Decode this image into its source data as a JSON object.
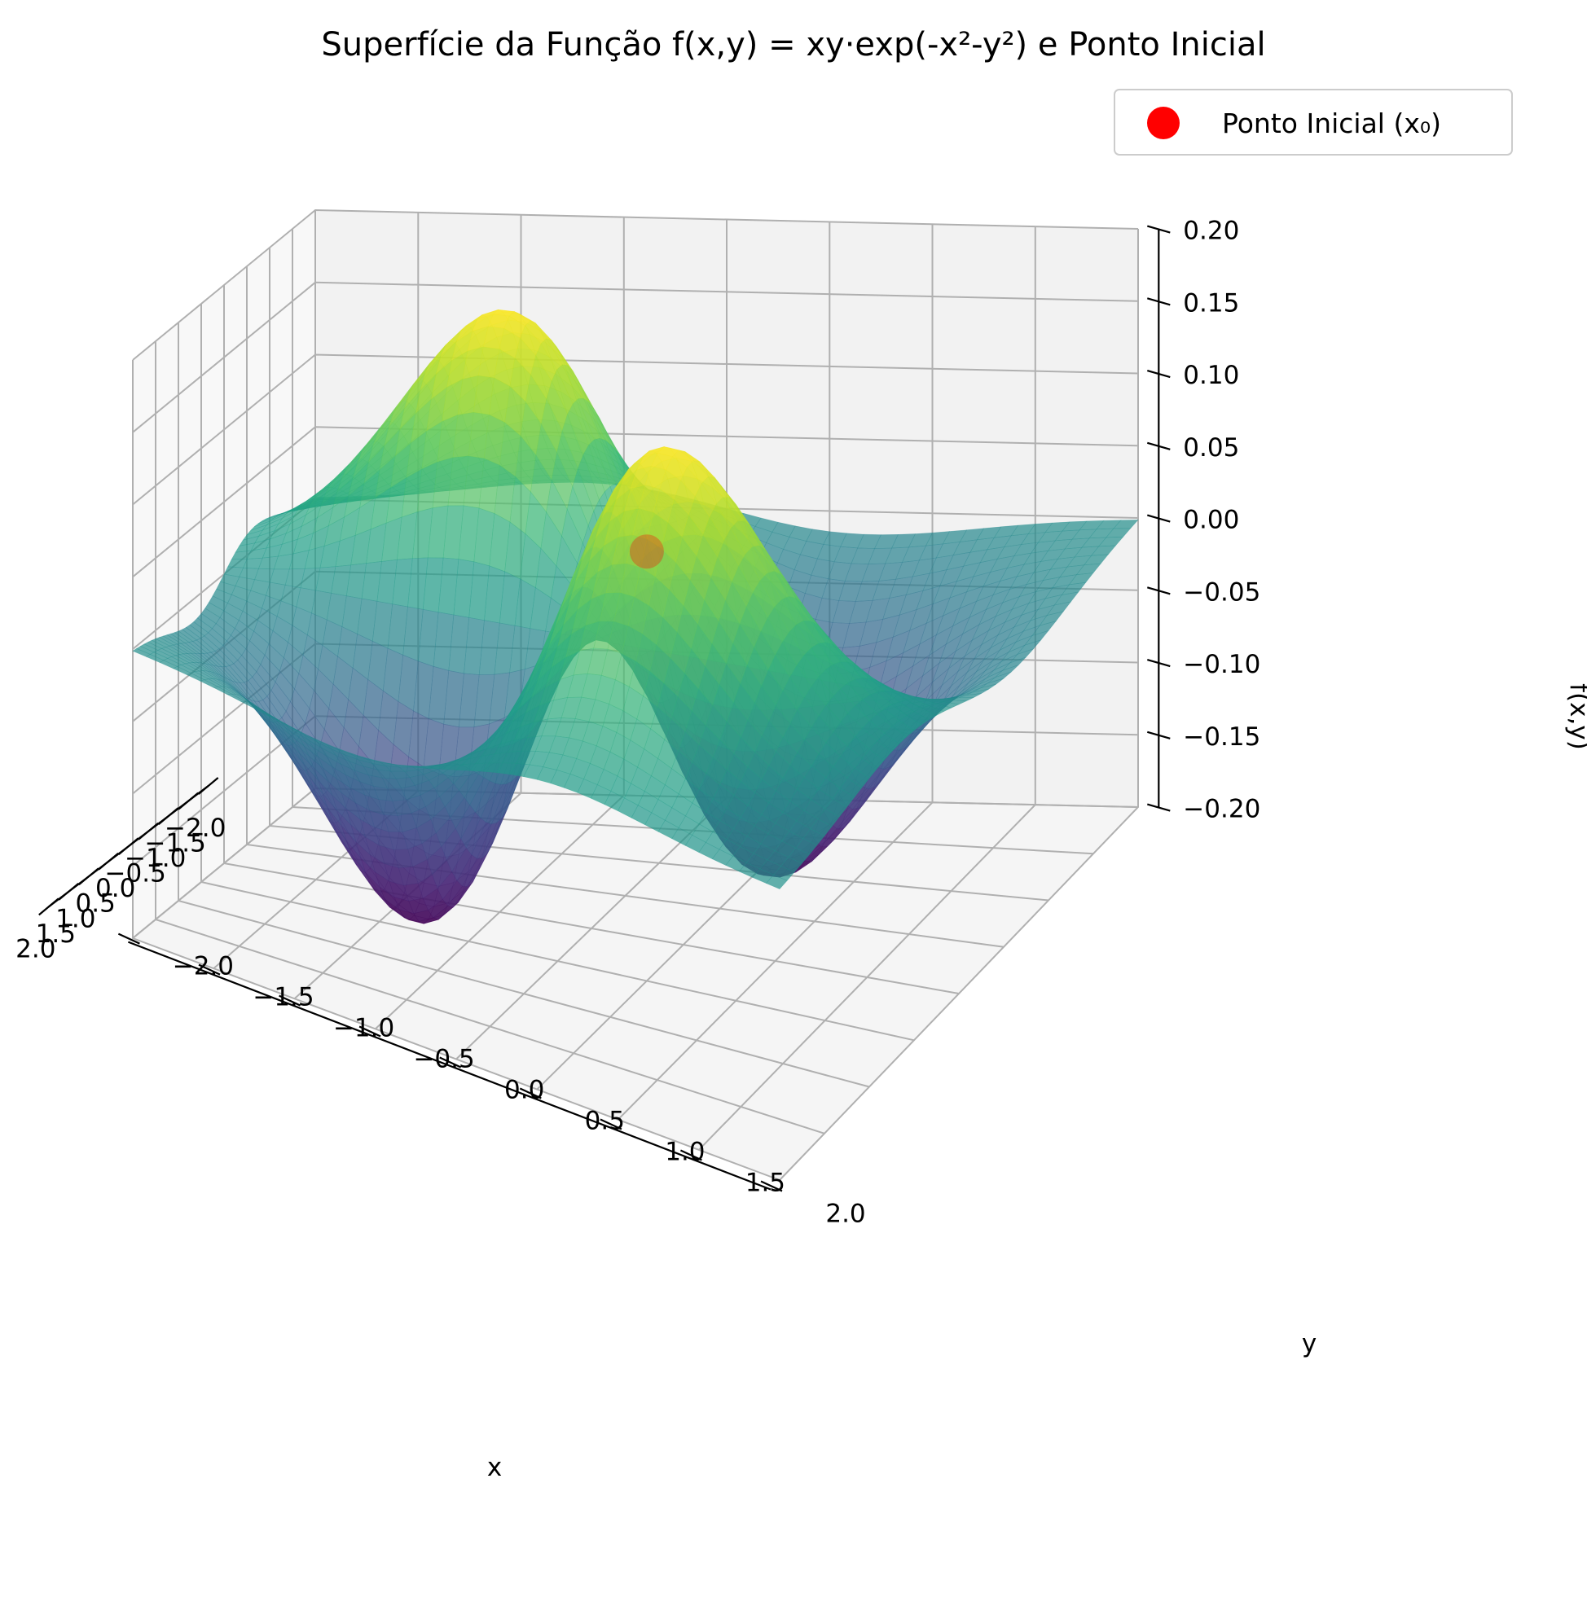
{
  "chart_data": {
    "type": "surface3d",
    "title": "Superfície da Função f(x,y) = xy·exp(-x²-y²) e Ponto Inicial",
    "function": "xy·exp(-x²-y²)",
    "xlabel": "x",
    "ylabel": "y",
    "zlabel": "f(x,y)",
    "xlim": [
      -2,
      2
    ],
    "ylim": [
      -2,
      2
    ],
    "zlim": [
      -0.2,
      0.2
    ],
    "xticks": [
      "−2.0",
      "−1.5",
      "−1.0",
      "−0.5",
      "0.0",
      "0.5",
      "1.0",
      "1.5",
      "2.0"
    ],
    "yticks": [
      "−2.0",
      "−1.5",
      "−1.0",
      "−0.5",
      "0.0",
      "0.5",
      "1.0",
      "1.5",
      "2.0"
    ],
    "zticks": [
      "−0.20",
      "−0.15",
      "−0.10",
      "−0.05",
      "0.00",
      "0.05",
      "0.10",
      "0.15",
      "0.20"
    ],
    "colormap": "viridis",
    "surface_alpha": 0.7,
    "grid": true,
    "legend_position": "top-right",
    "series": [
      {
        "name": "Ponto Inicial (x₀)",
        "type": "scatter",
        "color": "#ff0000",
        "x": 0.5,
        "y": 0.5,
        "z": 0.097
      }
    ]
  }
}
